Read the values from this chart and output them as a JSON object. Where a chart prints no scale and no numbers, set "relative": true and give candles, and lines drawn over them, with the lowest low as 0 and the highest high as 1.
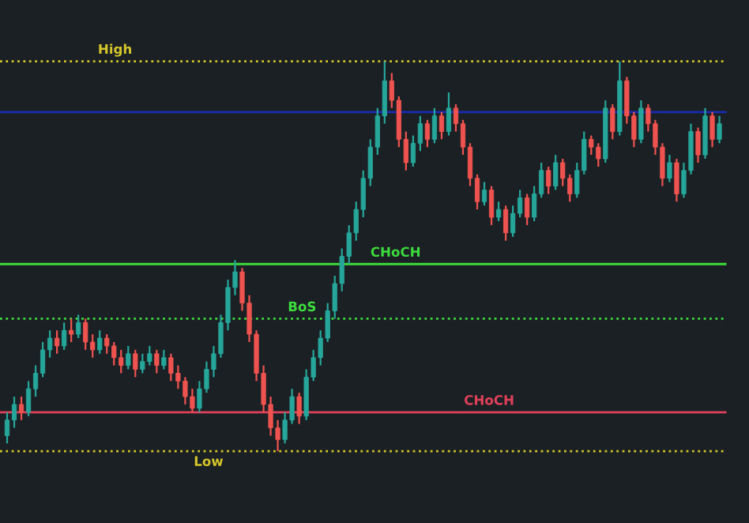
{
  "chart_data": {
    "type": "candlestick",
    "relative": true,
    "categories": [
      null,
      null,
      null,
      null,
      null,
      null,
      null,
      null,
      null,
      null,
      null,
      null,
      null,
      null,
      null,
      null,
      null,
      null,
      null,
      null,
      null,
      null,
      null,
      null,
      null,
      null,
      null,
      null,
      null,
      null,
      null,
      null,
      null,
      null,
      null,
      null,
      null,
      null,
      null,
      null,
      null,
      null,
      null,
      null,
      null,
      null,
      null,
      null,
      null,
      null,
      null,
      null,
      null,
      null,
      null,
      null,
      null,
      null,
      null,
      null,
      null,
      null,
      null,
      null,
      null,
      null,
      null,
      null,
      null,
      null,
      null,
      null,
      null,
      null,
      null,
      null,
      null,
      null,
      null,
      null,
      null,
      null,
      null,
      null,
      null,
      null,
      null,
      null,
      null,
      null,
      null,
      null,
      null,
      null,
      null,
      null,
      null,
      null,
      null,
      null,
      null
    ],
    "colors": [
      "#26a69a",
      "#26a69a",
      "#ef5350",
      "#26a69a",
      "#26a69a",
      "#26a69a",
      "#26a69a",
      "#ef5350",
      "#26a69a",
      "#ef5350",
      "#26a69a",
      "#ef5350",
      "#ef5350",
      "#26a69a",
      "#ef5350",
      "#ef5350",
      "#ef5350",
      "#26a69a",
      "#ef5350",
      "#26a69a",
      "#26a69a",
      "#ef5350",
      "#26a69a",
      "#ef5350",
      "#ef5350",
      "#ef5350",
      "#ef5350",
      "#26a69a",
      "#26a69a",
      "#26a69a",
      "#26a69a",
      "#26a69a",
      "#26a69a",
      "#ef5350",
      "#ef5350",
      "#ef5350",
      "#ef5350",
      "#ef5350",
      "#ef5350",
      "#26a69a",
      "#26a69a",
      "#ef5350",
      "#26a69a",
      "#26a69a",
      "#26a69a",
      "#26a69a",
      "#26a69a",
      "#26a69a",
      "#26a69a",
      "#26a69a",
      "#26a69a",
      "#26a69a",
      "#26a69a",
      "#26a69a",
      "#ef5350",
      "#ef5350",
      "#ef5350",
      "#26a69a",
      "#26a69a",
      "#ef5350",
      "#26a69a",
      "#ef5350",
      "#26a69a",
      "#ef5350",
      "#ef5350",
      "#ef5350",
      "#ef5350",
      "#26a69a",
      "#ef5350",
      "#26a69a",
      "#ef5350",
      "#26a69a",
      "#26a69a",
      "#ef5350",
      "#26a69a",
      "#26a69a",
      "#ef5350",
      "#26a69a",
      "#ef5350",
      "#ef5350",
      "#26a69a",
      "#26a69a",
      "#ef5350",
      "#ef5350",
      "#26a69a",
      "#ef5350",
      "#26a69a",
      "#ef5350",
      "#ef5350",
      "#26a69a",
      "#ef5350",
      "#ef5350",
      "#ef5350",
      "#26a69a",
      "#ef5350",
      "#26a69a",
      "#26a69a",
      "#ef5350",
      "#26a69a",
      "#ef5350",
      "#26a69a"
    ],
    "ohlc": [
      [
        0.04,
        0.1,
        0.02,
        0.08
      ],
      [
        0.08,
        0.14,
        0.06,
        0.12
      ],
      [
        0.12,
        0.14,
        0.08,
        0.1
      ],
      [
        0.1,
        0.18,
        0.09,
        0.16
      ],
      [
        0.16,
        0.22,
        0.14,
        0.2
      ],
      [
        0.2,
        0.28,
        0.19,
        0.26
      ],
      [
        0.26,
        0.31,
        0.24,
        0.29
      ],
      [
        0.29,
        0.31,
        0.25,
        0.27
      ],
      [
        0.27,
        0.33,
        0.26,
        0.31
      ],
      [
        0.31,
        0.34,
        0.28,
        0.3
      ],
      [
        0.3,
        0.35,
        0.29,
        0.33
      ],
      [
        0.33,
        0.34,
        0.26,
        0.28
      ],
      [
        0.28,
        0.3,
        0.24,
        0.26
      ],
      [
        0.26,
        0.31,
        0.25,
        0.29
      ],
      [
        0.29,
        0.3,
        0.25,
        0.27
      ],
      [
        0.27,
        0.28,
        0.22,
        0.24
      ],
      [
        0.24,
        0.26,
        0.2,
        0.22
      ],
      [
        0.22,
        0.27,
        0.21,
        0.25
      ],
      [
        0.25,
        0.26,
        0.19,
        0.21
      ],
      [
        0.21,
        0.25,
        0.2,
        0.23
      ],
      [
        0.23,
        0.27,
        0.22,
        0.25
      ],
      [
        0.25,
        0.26,
        0.2,
        0.22
      ],
      [
        0.22,
        0.26,
        0.21,
        0.24
      ],
      [
        0.24,
        0.25,
        0.18,
        0.2
      ],
      [
        0.2,
        0.22,
        0.16,
        0.18
      ],
      [
        0.18,
        0.19,
        0.12,
        0.14
      ],
      [
        0.14,
        0.16,
        0.1,
        0.11
      ],
      [
        0.11,
        0.18,
        0.1,
        0.16
      ],
      [
        0.16,
        0.23,
        0.15,
        0.21
      ],
      [
        0.21,
        0.27,
        0.19,
        0.25
      ],
      [
        0.25,
        0.35,
        0.24,
        0.33
      ],
      [
        0.33,
        0.44,
        0.31,
        0.42
      ],
      [
        0.42,
        0.49,
        0.4,
        0.46
      ],
      [
        0.46,
        0.47,
        0.36,
        0.38
      ],
      [
        0.38,
        0.4,
        0.28,
        0.3
      ],
      [
        0.3,
        0.31,
        0.18,
        0.2
      ],
      [
        0.2,
        0.22,
        0.1,
        0.12
      ],
      [
        0.12,
        0.14,
        0.04,
        0.06
      ],
      [
        0.06,
        0.08,
        0.0,
        0.03
      ],
      [
        0.03,
        0.1,
        0.02,
        0.08
      ],
      [
        0.08,
        0.16,
        0.07,
        0.14
      ],
      [
        0.14,
        0.15,
        0.07,
        0.09
      ],
      [
        0.09,
        0.21,
        0.08,
        0.19
      ],
      [
        0.19,
        0.26,
        0.18,
        0.24
      ],
      [
        0.24,
        0.31,
        0.22,
        0.29
      ],
      [
        0.29,
        0.38,
        0.28,
        0.36
      ],
      [
        0.36,
        0.45,
        0.34,
        0.43
      ],
      [
        0.43,
        0.52,
        0.41,
        0.5
      ],
      [
        0.5,
        0.58,
        0.48,
        0.56
      ],
      [
        0.56,
        0.64,
        0.54,
        0.62
      ],
      [
        0.62,
        0.72,
        0.6,
        0.7
      ],
      [
        0.7,
        0.8,
        0.68,
        0.78
      ],
      [
        0.78,
        0.88,
        0.76,
        0.86
      ],
      [
        0.86,
        1.0,
        0.84,
        0.95
      ],
      [
        0.95,
        0.97,
        0.88,
        0.9
      ],
      [
        0.9,
        0.91,
        0.78,
        0.8
      ],
      [
        0.8,
        0.82,
        0.72,
        0.74
      ],
      [
        0.74,
        0.81,
        0.73,
        0.79
      ],
      [
        0.79,
        0.86,
        0.77,
        0.84
      ],
      [
        0.84,
        0.85,
        0.78,
        0.8
      ],
      [
        0.8,
        0.88,
        0.79,
        0.86
      ],
      [
        0.86,
        0.87,
        0.8,
        0.82
      ],
      [
        0.82,
        0.92,
        0.81,
        0.88
      ],
      [
        0.88,
        0.89,
        0.82,
        0.84
      ],
      [
        0.84,
        0.85,
        0.76,
        0.78
      ],
      [
        0.78,
        0.79,
        0.68,
        0.7
      ],
      [
        0.7,
        0.71,
        0.62,
        0.64
      ],
      [
        0.64,
        0.69,
        0.63,
        0.67
      ],
      [
        0.67,
        0.68,
        0.58,
        0.6
      ],
      [
        0.6,
        0.64,
        0.59,
        0.62
      ],
      [
        0.62,
        0.63,
        0.54,
        0.56
      ],
      [
        0.56,
        0.63,
        0.55,
        0.61
      ],
      [
        0.61,
        0.67,
        0.6,
        0.65
      ],
      [
        0.65,
        0.66,
        0.58,
        0.6
      ],
      [
        0.6,
        0.68,
        0.59,
        0.66
      ],
      [
        0.66,
        0.74,
        0.65,
        0.72
      ],
      [
        0.72,
        0.73,
        0.66,
        0.68
      ],
      [
        0.68,
        0.76,
        0.67,
        0.74
      ],
      [
        0.74,
        0.75,
        0.68,
        0.7
      ],
      [
        0.7,
        0.71,
        0.64,
        0.66
      ],
      [
        0.66,
        0.74,
        0.65,
        0.72
      ],
      [
        0.72,
        0.82,
        0.71,
        0.8
      ],
      [
        0.8,
        0.81,
        0.76,
        0.78
      ],
      [
        0.78,
        0.79,
        0.73,
        0.75
      ],
      [
        0.75,
        0.9,
        0.74,
        0.88
      ],
      [
        0.88,
        0.89,
        0.8,
        0.82
      ],
      [
        0.82,
        1.0,
        0.81,
        0.95
      ],
      [
        0.95,
        0.96,
        0.84,
        0.86
      ],
      [
        0.86,
        0.87,
        0.78,
        0.8
      ],
      [
        0.8,
        0.9,
        0.79,
        0.88
      ],
      [
        0.88,
        0.89,
        0.82,
        0.84
      ],
      [
        0.84,
        0.85,
        0.76,
        0.78
      ],
      [
        0.78,
        0.79,
        0.68,
        0.7
      ],
      [
        0.7,
        0.76,
        0.69,
        0.74
      ],
      [
        0.74,
        0.75,
        0.64,
        0.66
      ],
      [
        0.66,
        0.74,
        0.65,
        0.72
      ],
      [
        0.72,
        0.84,
        0.71,
        0.82
      ],
      [
        0.82,
        0.83,
        0.74,
        0.76
      ],
      [
        0.76,
        0.88,
        0.75,
        0.86
      ],
      [
        0.86,
        0.87,
        0.78,
        0.8
      ],
      [
        0.8,
        0.86,
        0.79,
        0.84
      ]
    ],
    "ref_lines": [
      {
        "axis": "y",
        "value": 1.0,
        "label": "High",
        "color": "#d4c62a",
        "line_style": "dotted"
      },
      {
        "axis": "y",
        "value": 0.0,
        "label": "Low",
        "color": "#d4c62a",
        "line_style": "dotted"
      },
      {
        "axis": "y",
        "value": 0.34,
        "label": "BoS",
        "color": "#3ddc3d",
        "line_style": "dotted"
      },
      {
        "axis": "y",
        "value": 0.48,
        "label": "CHoCH",
        "color": "#3ddc3d",
        "line_style": "solid"
      },
      {
        "axis": "y",
        "value": 0.1,
        "label": "CHoCH",
        "color": "#e0405a",
        "line_style": "solid"
      },
      {
        "axis": "y",
        "value": 0.87,
        "label": null,
        "color": "#1a2bb0",
        "line_style": "solid"
      }
    ]
  }
}
